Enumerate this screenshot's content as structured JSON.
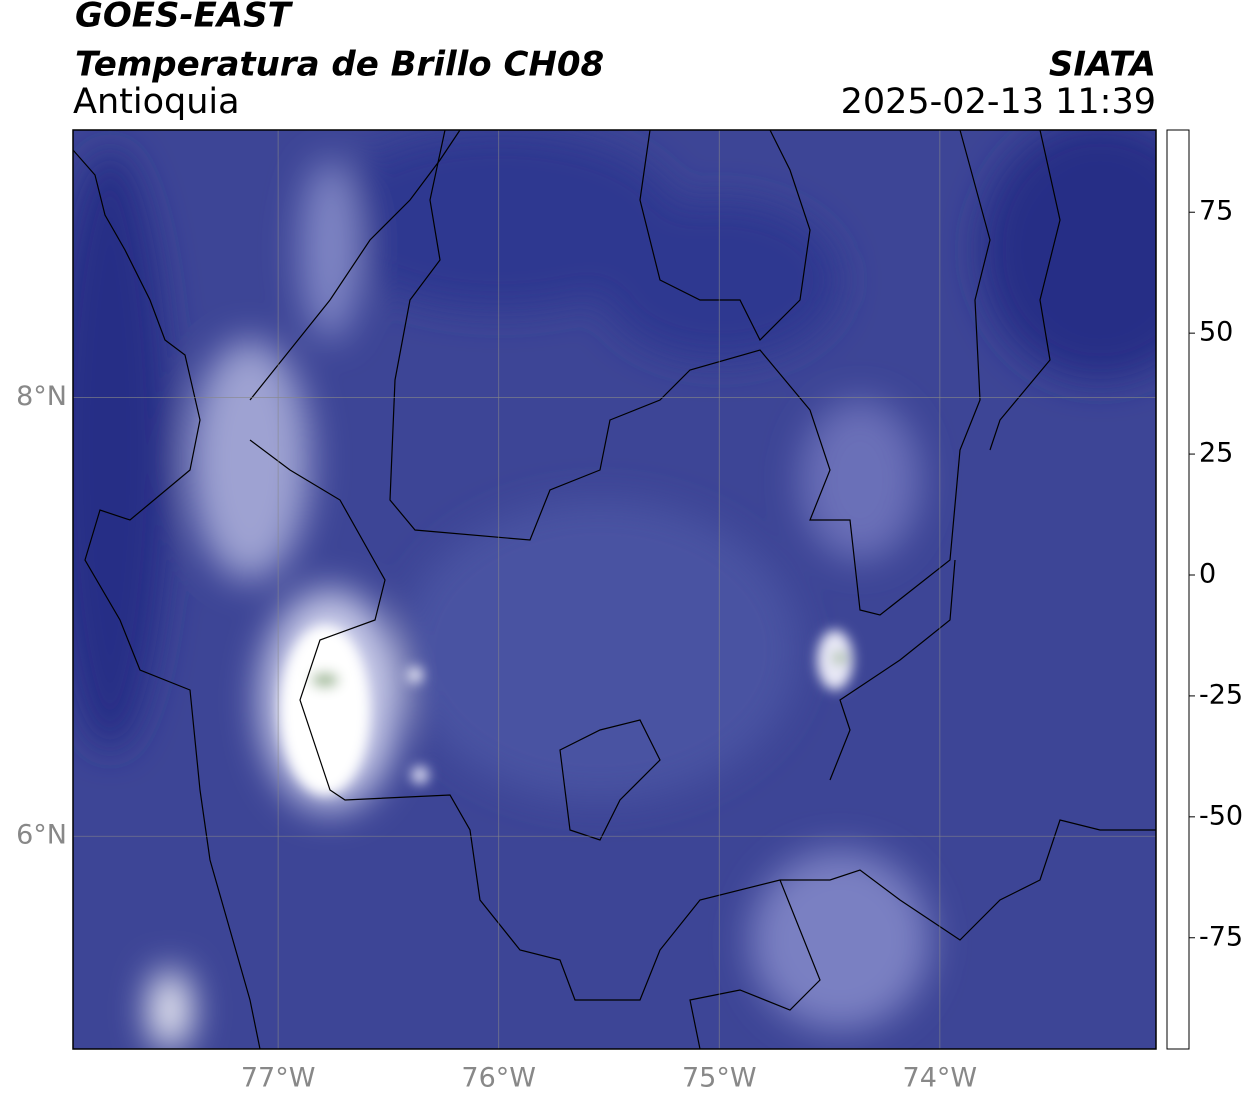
{
  "map": {
    "title": "GOES-EAST",
    "subtitle": "Temperatura de Brillo CH08",
    "region": "Antioquia",
    "agency": "SIATA",
    "datetime": "2025-02-13 11:39",
    "xlim": [
      -77.93,
      -73.02
    ],
    "ylim": [
      5.03,
      9.22
    ],
    "xticks": [
      {
        "value": -77,
        "label": "77°W"
      },
      {
        "value": -76,
        "label": "76°W"
      },
      {
        "value": -75,
        "label": "75°W"
      },
      {
        "value": -74,
        "label": "74°W"
      }
    ],
    "yticks": [
      {
        "value": 6,
        "label": "6°N"
      },
      {
        "value": 8,
        "label": "8°N"
      }
    ],
    "grid": true,
    "colorbar": {
      "ylim": [
        -98,
        92
      ],
      "yticks": [
        75,
        50,
        25,
        0,
        -25,
        -50,
        -75
      ],
      "colormap": [
        {
          "value": -98,
          "color": "#ffffff"
        },
        {
          "value": -96,
          "color": "#ffffff"
        },
        {
          "value": -95,
          "color": "#00e8e0"
        },
        {
          "value": -85,
          "color": "#20b090"
        },
        {
          "value": -70,
          "color": "#3a8a30"
        },
        {
          "value": -60,
          "color": "#8ab070"
        },
        {
          "value": -52,
          "color": "#ffffff"
        },
        {
          "value": -45,
          "color": "#b8bce0"
        },
        {
          "value": -35,
          "color": "#5a60b0"
        },
        {
          "value": -30,
          "color": "#1a1f8a"
        },
        {
          "value": -27,
          "color": "#101060"
        },
        {
          "value": -25,
          "color": "#303040"
        },
        {
          "value": -20,
          "color": "#909090"
        },
        {
          "value": -15,
          "color": "#ffff00"
        },
        {
          "value": -8,
          "color": "#ffa000"
        },
        {
          "value": 0,
          "color": "#ff8000"
        },
        {
          "value": 8,
          "color": "#ff0000"
        },
        {
          "value": 8.1,
          "color": "#000000"
        },
        {
          "value": 92,
          "color": "#000000"
        }
      ]
    }
  }
}
